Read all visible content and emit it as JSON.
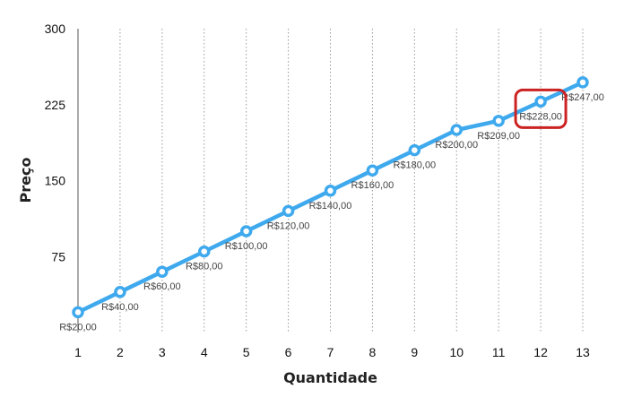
{
  "chart_data": {
    "type": "line",
    "title": "",
    "xlabel": "Quantidade",
    "ylabel": "Preço",
    "x": [
      1,
      2,
      3,
      4,
      5,
      6,
      7,
      8,
      9,
      10,
      11,
      12,
      13
    ],
    "y": [
      20,
      40,
      60,
      80,
      100,
      120,
      140,
      160,
      180,
      200,
      209,
      228,
      247
    ],
    "data_labels": [
      "R$20,00",
      "R$40,00",
      "R$60,00",
      "R$80,00",
      "R$100,00",
      "R$120,00",
      "R$140,00",
      "R$160,00",
      "R$180,00",
      "R$200,00",
      "R$209,00",
      "R$228,00",
      "R$247,00"
    ],
    "x_ticks": [
      "1",
      "2",
      "3",
      "4",
      "5",
      "6",
      "7",
      "8",
      "9",
      "10",
      "11",
      "12",
      "13"
    ],
    "y_ticks": [
      "75",
      "150",
      "225",
      "300"
    ],
    "ylim": [
      0,
      300
    ],
    "grid": "vertical dotted",
    "line_color": "#3fa9ee",
    "highlight": {
      "x": 12,
      "color": "#cc2222"
    }
  }
}
